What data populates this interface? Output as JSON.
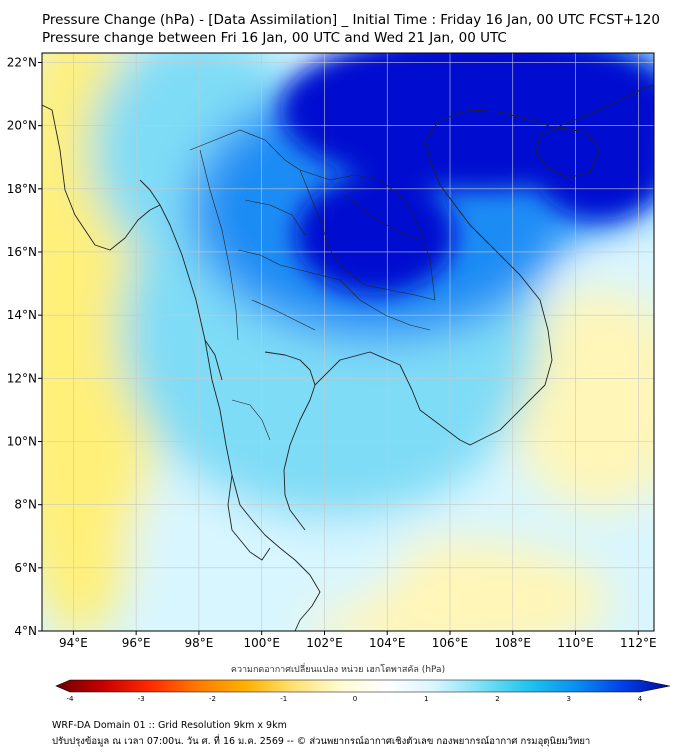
{
  "title_line1": "Pressure Change (hPa) - [Data Assimilation] _ Initial Time : Friday 16 Jan, 00 UTC FCST+120",
  "title_line2": "Pressure change between Fri 16 Jan, 00 UTC and Wed 21 Jan, 00 UTC",
  "axes": {
    "lon_ticks": [
      "94°E",
      "96°E",
      "98°E",
      "100°E",
      "102°E",
      "104°E",
      "106°E",
      "108°E",
      "110°E",
      "112°E"
    ],
    "lat_ticks": [
      "22°N",
      "20°N",
      "18°N",
      "16°N",
      "14°N",
      "12°N",
      "10°N",
      "8°N",
      "6°N",
      "4°N"
    ],
    "lon_range": [
      93,
      112.5
    ],
    "lat_range": [
      4,
      22.3
    ]
  },
  "colorbar": {
    "label": "ความกดอากาศเปลี่ยนแปลง หน่วย เฮกโตพาสคัล (hPa)",
    "ticks": [
      "-4",
      "-3",
      "-2",
      "-1",
      "0",
      "1",
      "2",
      "3",
      "4"
    ],
    "range": [
      -4,
      4
    ],
    "colors": [
      "#6b0000",
      "#c80000",
      "#ff2a00",
      "#ff7a00",
      "#ffb000",
      "#ffe070",
      "#fffbd0",
      "#ffffff",
      "#d9f6ff",
      "#7ee0f5",
      "#20c4ee",
      "#0a8ff0",
      "#0040e8",
      "#000a9e"
    ]
  },
  "field_colors": {
    "strong_rise": "#0010d0",
    "moderate_rise": "#1e8cf5",
    "weak_rise": "#7fdcf6",
    "slight_rise": "#d8f6ff",
    "neutral": "#ffffff",
    "slight_fall": "#fff6b8",
    "weak_fall": "#fff07a",
    "coast": "#222222",
    "grid": "#c8c8c8"
  },
  "footer": {
    "line1": "WRF-DA Domain 01 :: Grid Resolution 9km x 9km",
    "line2": "ปรับปรุงข้อมูล ณ เวลา 07:00น. วัน ศ. ที่ 16 ม.ค. 2569 -- © ส่วนพยากรณ์อากาศเชิงตัวเลข กองพยากรณ์อากาศ กรมอุตุนิยมวิทยา"
  }
}
